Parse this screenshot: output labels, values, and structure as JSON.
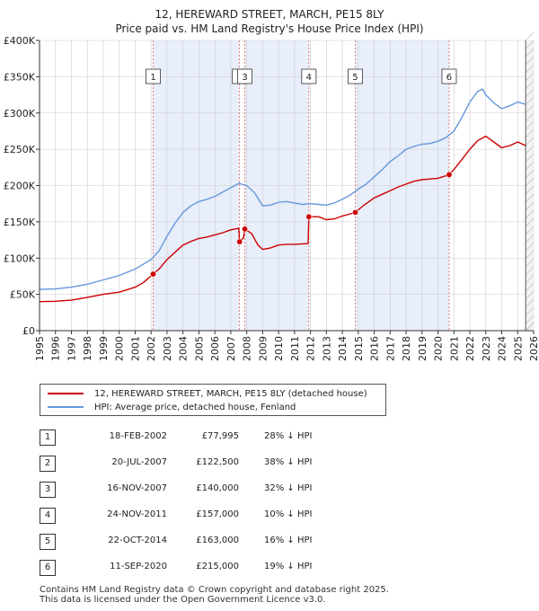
{
  "chart_data": {
    "type": "line",
    "title": "12, HEREWARD STREET, MARCH, PE15 8LY",
    "subtitle": "Price paid vs. HM Land Registry's House Price Index (HPI)",
    "xlim": [
      1995,
      2026
    ],
    "ylim": [
      0,
      400000
    ],
    "x_ticks": [
      "1995",
      "1996",
      "1997",
      "1998",
      "1999",
      "2000",
      "2001",
      "2002",
      "2003",
      "2004",
      "2005",
      "2006",
      "2007",
      "2008",
      "2009",
      "2010",
      "2011",
      "2012",
      "2013",
      "2014",
      "2015",
      "2016",
      "2017",
      "2018",
      "2019",
      "2020",
      "2021",
      "2022",
      "2023",
      "2024",
      "2025",
      "2026"
    ],
    "y_ticks": [
      {
        "value": 0,
        "label": "£0"
      },
      {
        "value": 50000,
        "label": "£50K"
      },
      {
        "value": 100000,
        "label": "£100K"
      },
      {
        "value": 150000,
        "label": "£150K"
      },
      {
        "value": 200000,
        "label": "£200K"
      },
      {
        "value": 250000,
        "label": "£250K"
      },
      {
        "value": 300000,
        "label": "£300K"
      },
      {
        "value": 350000,
        "label": "£350K"
      },
      {
        "value": 400000,
        "label": "£400K"
      }
    ],
    "series": [
      {
        "name": "12, HEREWARD STREET, MARCH, PE15 8LY (detached house)",
        "color": "#cc0000",
        "points": [
          [
            1995.0,
            40000
          ],
          [
            1996.0,
            40500
          ],
          [
            1997.0,
            42000
          ],
          [
            1998.0,
            46000
          ],
          [
            1999.0,
            50000
          ],
          [
            2000.0,
            53000
          ],
          [
            2001.0,
            60000
          ],
          [
            2001.5,
            66000
          ],
          [
            2002.13,
            77995
          ],
          [
            2002.5,
            85000
          ],
          [
            2003.0,
            98000
          ],
          [
            2003.5,
            108000
          ],
          [
            2004.0,
            118000
          ],
          [
            2004.5,
            123000
          ],
          [
            2005.0,
            127000
          ],
          [
            2005.5,
            129000
          ],
          [
            2006.0,
            132000
          ],
          [
            2006.5,
            135000
          ],
          [
            2007.0,
            139000
          ],
          [
            2007.5,
            141000
          ],
          [
            2007.55,
            122500
          ],
          [
            2007.8,
            128000
          ],
          [
            2007.88,
            140000
          ],
          [
            2008.3,
            134000
          ],
          [
            2008.7,
            118000
          ],
          [
            2009.0,
            112000
          ],
          [
            2009.5,
            114000
          ],
          [
            2010.0,
            118000
          ],
          [
            2010.5,
            119000
          ],
          [
            2011.0,
            119000
          ],
          [
            2011.85,
            120000
          ],
          [
            2011.9,
            157000
          ],
          [
            2012.5,
            157000
          ],
          [
            2013.0,
            153000
          ],
          [
            2013.5,
            154000
          ],
          [
            2014.0,
            158000
          ],
          [
            2014.5,
            161000
          ],
          [
            2014.81,
            163000
          ],
          [
            2015.3,
            172000
          ],
          [
            2016.0,
            183000
          ],
          [
            2016.5,
            188000
          ],
          [
            2017.0,
            193000
          ],
          [
            2017.5,
            198000
          ],
          [
            2018.0,
            202000
          ],
          [
            2018.5,
            206000
          ],
          [
            2019.0,
            208000
          ],
          [
            2019.5,
            209000
          ],
          [
            2020.0,
            210000
          ],
          [
            2020.7,
            215000
          ],
          [
            2021.0,
            222000
          ],
          [
            2021.5,
            236000
          ],
          [
            2022.0,
            250000
          ],
          [
            2022.5,
            262000
          ],
          [
            2023.0,
            268000
          ],
          [
            2023.5,
            260000
          ],
          [
            2024.0,
            252000
          ],
          [
            2024.5,
            255000
          ],
          [
            2025.0,
            260000
          ],
          [
            2025.5,
            255000
          ]
        ]
      },
      {
        "name": "HPI: Average price, detached house, Fenland",
        "color": "#6699dd",
        "points": [
          [
            1995.0,
            57000
          ],
          [
            1996.0,
            57500
          ],
          [
            1997.0,
            60000
          ],
          [
            1998.0,
            64000
          ],
          [
            1999.0,
            70000
          ],
          [
            2000.0,
            76000
          ],
          [
            2001.0,
            85000
          ],
          [
            2002.0,
            98000
          ],
          [
            2002.5,
            110000
          ],
          [
            2003.0,
            130000
          ],
          [
            2003.5,
            148000
          ],
          [
            2004.0,
            163000
          ],
          [
            2004.5,
            172000
          ],
          [
            2005.0,
            178000
          ],
          [
            2005.5,
            181000
          ],
          [
            2006.0,
            185000
          ],
          [
            2006.5,
            191000
          ],
          [
            2007.0,
            197000
          ],
          [
            2007.5,
            203000
          ],
          [
            2008.0,
            200000
          ],
          [
            2008.5,
            190000
          ],
          [
            2009.0,
            172000
          ],
          [
            2009.5,
            173000
          ],
          [
            2010.0,
            177000
          ],
          [
            2010.5,
            178000
          ],
          [
            2011.0,
            176000
          ],
          [
            2011.5,
            174000
          ],
          [
            2012.0,
            175000
          ],
          [
            2012.5,
            174000
          ],
          [
            2013.0,
            173000
          ],
          [
            2013.5,
            176000
          ],
          [
            2014.0,
            181000
          ],
          [
            2014.5,
            187000
          ],
          [
            2015.0,
            195000
          ],
          [
            2015.5,
            202000
          ],
          [
            2016.0,
            212000
          ],
          [
            2016.5,
            222000
          ],
          [
            2017.0,
            233000
          ],
          [
            2017.5,
            241000
          ],
          [
            2018.0,
            250000
          ],
          [
            2018.5,
            254000
          ],
          [
            2019.0,
            257000
          ],
          [
            2019.5,
            258000
          ],
          [
            2020.0,
            261000
          ],
          [
            2020.5,
            266000
          ],
          [
            2021.0,
            275000
          ],
          [
            2021.5,
            294000
          ],
          [
            2022.0,
            315000
          ],
          [
            2022.5,
            330000
          ],
          [
            2022.8,
            333000
          ],
          [
            2023.0,
            325000
          ],
          [
            2023.5,
            314000
          ],
          [
            2024.0,
            306000
          ],
          [
            2024.5,
            310000
          ],
          [
            2025.0,
            315000
          ],
          [
            2025.5,
            312000
          ]
        ]
      }
    ],
    "sales": [
      {
        "id": "1",
        "x": 2002.13,
        "price": 77995
      },
      {
        "id": "2",
        "x": 2007.55,
        "price": 122500
      },
      {
        "id": "3",
        "x": 2007.88,
        "price": 140000
      },
      {
        "id": "4",
        "x": 2011.9,
        "price": 157000
      },
      {
        "id": "5",
        "x": 2014.81,
        "price": 163000
      },
      {
        "id": "6",
        "x": 2020.7,
        "price": 215000
      }
    ],
    "colors": {
      "shade": "#e8eefa",
      "grid": "#cccccc",
      "vline": "#dd6666",
      "axis": "#333333"
    }
  },
  "legend": {
    "property_label": "12, HEREWARD STREET, MARCH, PE15 8LY (detached house)",
    "hpi_label": "HPI: Average price, detached house, Fenland"
  },
  "sales_table": [
    {
      "num": "1",
      "date": "18-FEB-2002",
      "price": "£77,995",
      "hpi": "28% ↓ HPI"
    },
    {
      "num": "2",
      "date": "20-JUL-2007",
      "price": "£122,500",
      "hpi": "38% ↓ HPI"
    },
    {
      "num": "3",
      "date": "16-NOV-2007",
      "price": "£140,000",
      "hpi": "32% ↓ HPI"
    },
    {
      "num": "4",
      "date": "24-NOV-2011",
      "price": "£157,000",
      "hpi": "10% ↓ HPI"
    },
    {
      "num": "5",
      "date": "22-OCT-2014",
      "price": "£163,000",
      "hpi": "16% ↓ HPI"
    },
    {
      "num": "6",
      "date": "11-SEP-2020",
      "price": "£215,000",
      "hpi": "19% ↓ HPI"
    }
  ],
  "footer": {
    "line1": "Contains HM Land Registry data © Crown copyright and database right 2025.",
    "line2": "This data is licensed under the Open Government Licence v3.0."
  }
}
